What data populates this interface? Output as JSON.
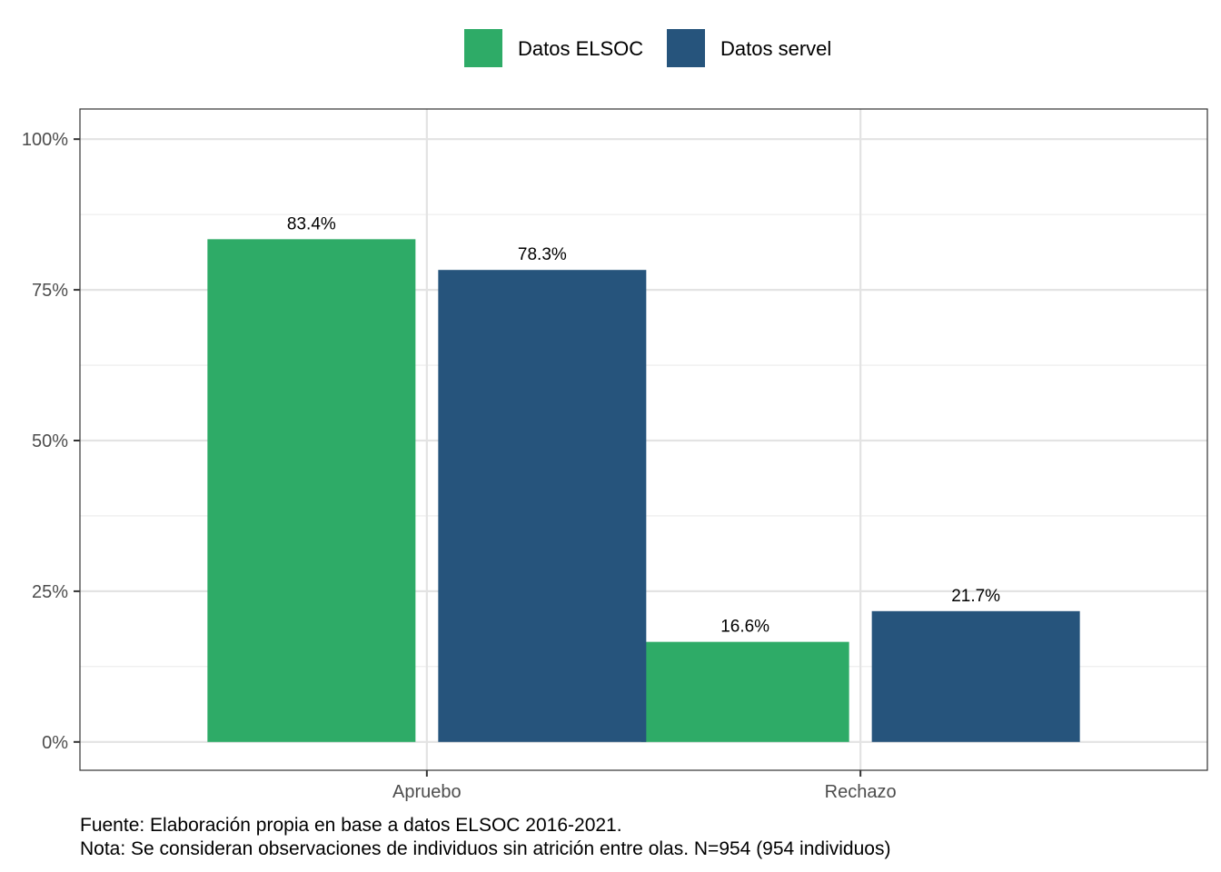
{
  "chart_data": {
    "type": "bar",
    "categories": [
      "Apruebo",
      "Rechazo"
    ],
    "series": [
      {
        "name": "Datos ELSOC",
        "color": "#2EAB67",
        "values": [
          83.4,
          16.6
        ],
        "labels": [
          "83.4%",
          "16.6%"
        ]
      },
      {
        "name": "Datos servel",
        "color": "#26547C",
        "values": [
          78.3,
          21.7
        ],
        "labels": [
          "78.3%",
          "21.7%"
        ]
      }
    ],
    "ylim": [
      -4.7,
      105
    ],
    "yticks": [
      0,
      25,
      50,
      75,
      100
    ],
    "ytick_labels": [
      "0%",
      "25%",
      "50%",
      "75%",
      "100%"
    ],
    "ygrid_minor": [
      12.5,
      37.5,
      62.5,
      87.5
    ],
    "grid": true,
    "legend_position": "top",
    "title": "",
    "xlabel": "",
    "ylabel": ""
  },
  "caption": {
    "source": "Fuente: Elaboración propia en base a datos ELSOC 2016-2021.",
    "note": "Nota: Se consideran observaciones de individuos sin atrición entre olas. N=954 (954 individuos)"
  }
}
